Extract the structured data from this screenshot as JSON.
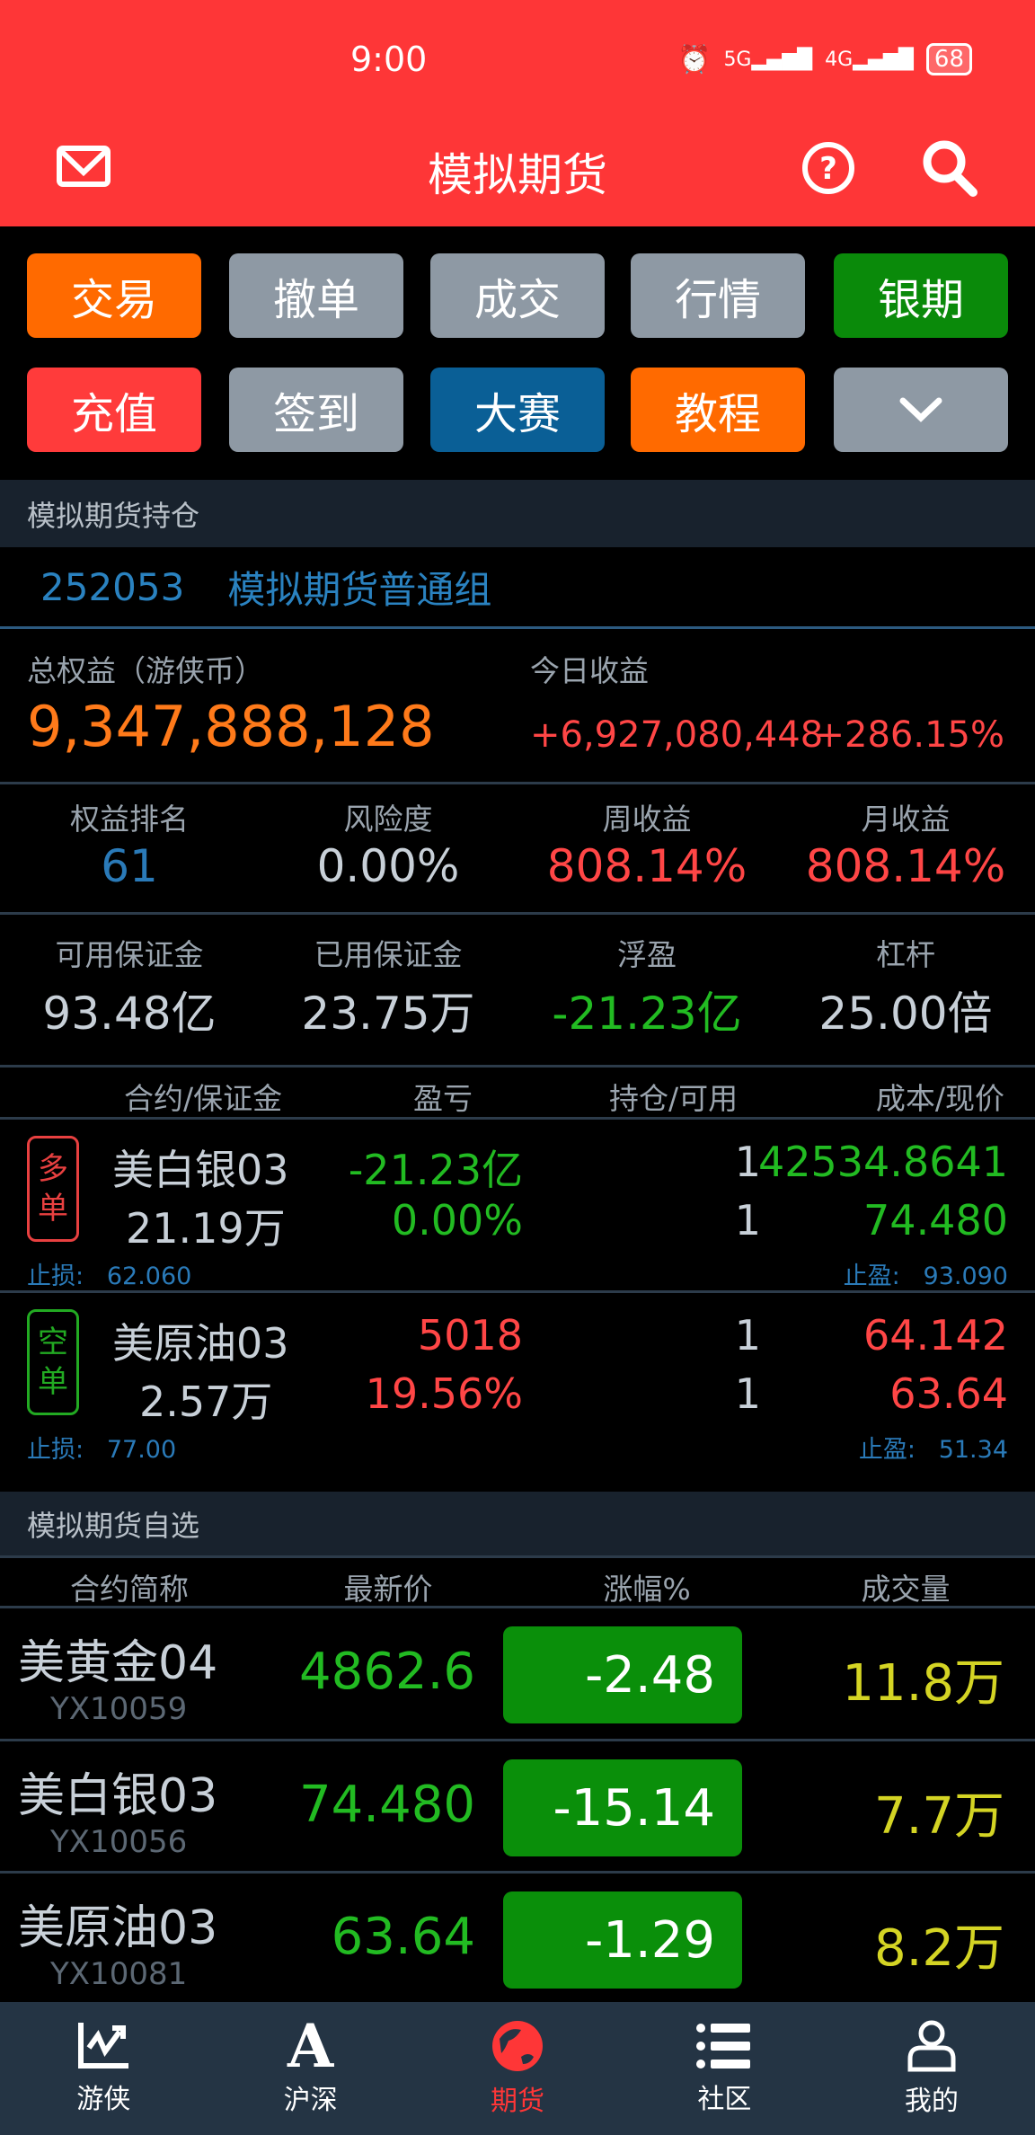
{
  "status_bar": {
    "time": "9:00",
    "net1": "5G",
    "net2": "4G",
    "battery": "68"
  },
  "header": {
    "title": "模拟期货",
    "icons": [
      "mail-icon",
      "help-icon",
      "search-icon"
    ]
  },
  "quick_buttons": [
    {
      "label": "交易",
      "color": "#ff6a00"
    },
    {
      "label": "撤单",
      "color": "#8e99a4"
    },
    {
      "label": "成交",
      "color": "#8e99a4"
    },
    {
      "label": "行情",
      "color": "#8e99a4"
    },
    {
      "label": "银期",
      "color": "#0a8a0a"
    },
    {
      "label": "充值",
      "color": "#ff3b3b"
    },
    {
      "label": "签到",
      "color": "#8e99a4"
    },
    {
      "label": "大赛",
      "color": "#0a5f96"
    },
    {
      "label": "教程",
      "color": "#ff6a00"
    },
    {
      "label": "",
      "icon": "chevron-down-icon",
      "color": "#8e99a4"
    }
  ],
  "holdings": {
    "section_title": "模拟期货持仓",
    "account_id": "252053",
    "group": "模拟期货普通组",
    "total_equity_label": "总权益（游侠币）",
    "total_equity": "9,347,888,128",
    "today_label": "今日收益",
    "today_amount": "+6,927,080,448",
    "today_pct": "+286.15%",
    "stats": [
      {
        "label": "权益排名",
        "value": "61"
      },
      {
        "label": "风险度",
        "value": "0.00%"
      },
      {
        "label": "周收益",
        "value": "808.14%"
      },
      {
        "label": "月收益",
        "value": "808.14%"
      }
    ],
    "margins": [
      {
        "label": "可用保证金",
        "value": "93.48亿"
      },
      {
        "label": "已用保证金",
        "value": "23.75万"
      },
      {
        "label": "浮盈",
        "value": "-21.23亿"
      },
      {
        "label": "杠杆",
        "value": "25.00倍"
      }
    ],
    "columns": [
      "合约/保证金",
      "盈亏",
      "持仓/可用",
      "成本/现价"
    ],
    "positions": [
      {
        "side": [
          "多",
          "单"
        ],
        "name": "美白银03",
        "margin": "21.19万",
        "pnl": "-21.23亿",
        "pnl_pct": "0.00%",
        "hold": "1",
        "avail": "1",
        "cost": "42534.8641",
        "price": "74.480",
        "stop_loss_label": "止损:",
        "stop_loss": "62.060",
        "take_profit_label": "止盈:",
        "take_profit": "93.090"
      },
      {
        "side": [
          "空",
          "单"
        ],
        "name": "美原油03",
        "margin": "2.57万",
        "pnl": "5018",
        "pnl_pct": "19.56%",
        "hold": "1",
        "avail": "1",
        "cost": "64.142",
        "price": "63.64",
        "stop_loss_label": "止损:",
        "stop_loss": "77.00",
        "take_profit_label": "止盈:",
        "take_profit": "51.34"
      }
    ]
  },
  "watchlist": {
    "section_title": "模拟期货自选",
    "columns": [
      "合约简称",
      "最新价",
      "涨幅%",
      "成交量"
    ],
    "rows": [
      {
        "name": "美黄金04",
        "code": "YX10059",
        "price": "4862.6",
        "change": "-2.48",
        "volume": "11.8万"
      },
      {
        "name": "美白银03",
        "code": "YX10056",
        "price": "74.480",
        "change": "-15.14",
        "volume": "7.7万"
      },
      {
        "name": "美原油03",
        "code": "YX10081",
        "price": "63.64",
        "change": "-1.29",
        "volume": "8.2万"
      }
    ]
  },
  "bottom_nav": [
    {
      "label": "游侠",
      "icon": "chart-trend-icon"
    },
    {
      "label": "沪深",
      "icon": "letter-a-icon"
    },
    {
      "label": "期货",
      "icon": "globe-icon",
      "active": true
    },
    {
      "label": "社区",
      "icon": "list-icon"
    },
    {
      "label": "我的",
      "icon": "user-icon"
    }
  ],
  "colors": {
    "header": "#fe3637",
    "up": "#ff4646",
    "down": "#22bb22",
    "accent_blue": "#2a7ab8",
    "active_nav": "#fe3637"
  }
}
